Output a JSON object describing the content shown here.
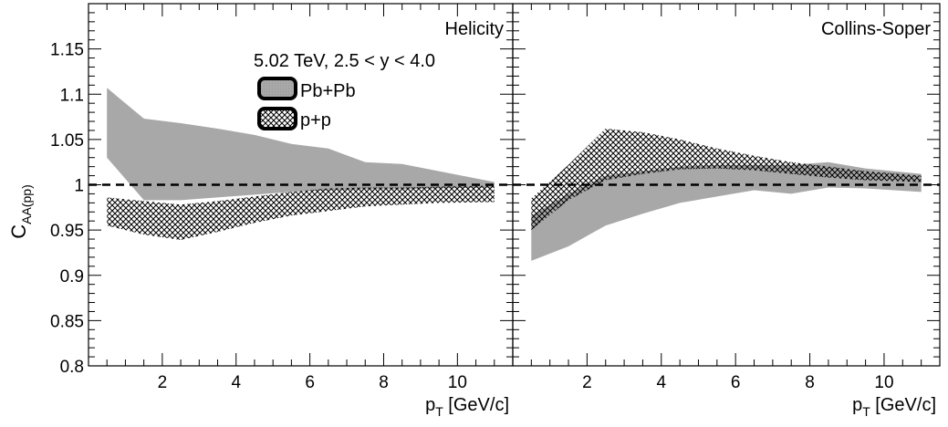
{
  "chart_data": [
    {
      "type": "area",
      "panel_label": "Helicity",
      "xlabel": "p_T [GeV/c]",
      "ylabel": "C_AA(pp)",
      "xlim": [
        0,
        11.5
      ],
      "ylim": [
        0.8,
        1.2
      ],
      "xticks": [
        2,
        4,
        6,
        8,
        10
      ],
      "yticks": [
        0.8,
        0.85,
        0.9,
        0.95,
        1,
        1.05,
        1.1,
        1.15
      ],
      "reference_line": 1,
      "legend": {
        "title": "5.02 TeV, 2.5 < y < 4.0",
        "entries": [
          "Pb+Pb",
          "p+p"
        ],
        "placement": "top-center"
      },
      "series": [
        {
          "name": "Pb+Pb",
          "style": "solid-gray",
          "x": [
            0.5,
            1.5,
            2.5,
            3.5,
            4.5,
            5.5,
            6.5,
            7.5,
            8.5,
            9.5,
            11.0
          ],
          "upper": [
            1.107,
            1.073,
            1.068,
            1.062,
            1.055,
            1.045,
            1.04,
            1.025,
            1.023,
            1.015,
            1.003
          ],
          "lower": [
            1.03,
            0.983,
            0.983,
            0.986,
            0.989,
            0.992,
            0.994,
            0.995,
            0.995,
            0.996,
            0.997
          ]
        },
        {
          "name": "p+p",
          "style": "crosshatch",
          "x": [
            0.5,
            1.5,
            2.5,
            3.5,
            4.5,
            5.5,
            6.5,
            7.5,
            8.5,
            9.5,
            11.0
          ],
          "upper": [
            0.986,
            0.982,
            0.978,
            0.982,
            0.987,
            0.992,
            0.996,
            0.997,
            0.997,
            0.998,
            0.999
          ],
          "lower": [
            0.955,
            0.945,
            0.939,
            0.948,
            0.958,
            0.966,
            0.971,
            0.976,
            0.978,
            0.98,
            0.981
          ]
        }
      ]
    },
    {
      "type": "area",
      "panel_label": "Collins-Soper",
      "xlabel": "p_T [GeV/c]",
      "xlim": [
        0,
        11.5
      ],
      "ylim": [
        0.8,
        1.2
      ],
      "xticks": [
        2,
        4,
        6,
        8,
        10
      ],
      "reference_line": 1,
      "series": [
        {
          "name": "Pb+Pb",
          "style": "solid-gray",
          "x": [
            0.5,
            1.5,
            2.5,
            3.5,
            4.5,
            5.5,
            6.5,
            7.5,
            8.5,
            9.5,
            11.0
          ],
          "upper": [
            0.966,
            0.99,
            1.01,
            1.015,
            1.02,
            1.022,
            1.022,
            1.022,
            1.025,
            1.018,
            1.012
          ],
          "lower": [
            0.916,
            0.932,
            0.955,
            0.968,
            0.98,
            0.987,
            0.994,
            0.99,
            0.997,
            0.996,
            0.992
          ]
        },
        {
          "name": "p+p",
          "style": "crosshatch",
          "x": [
            0.5,
            1.5,
            2.5,
            3.5,
            4.5,
            5.5,
            6.5,
            7.5,
            8.5,
            9.5,
            11.0
          ],
          "upper": [
            0.985,
            1.022,
            1.062,
            1.058,
            1.05,
            1.04,
            1.032,
            1.025,
            1.02,
            1.015,
            1.01
          ],
          "lower": [
            0.95,
            0.983,
            1.005,
            1.012,
            1.017,
            1.018,
            1.016,
            1.012,
            1.008,
            1.005,
            1.003
          ]
        }
      ]
    }
  ]
}
